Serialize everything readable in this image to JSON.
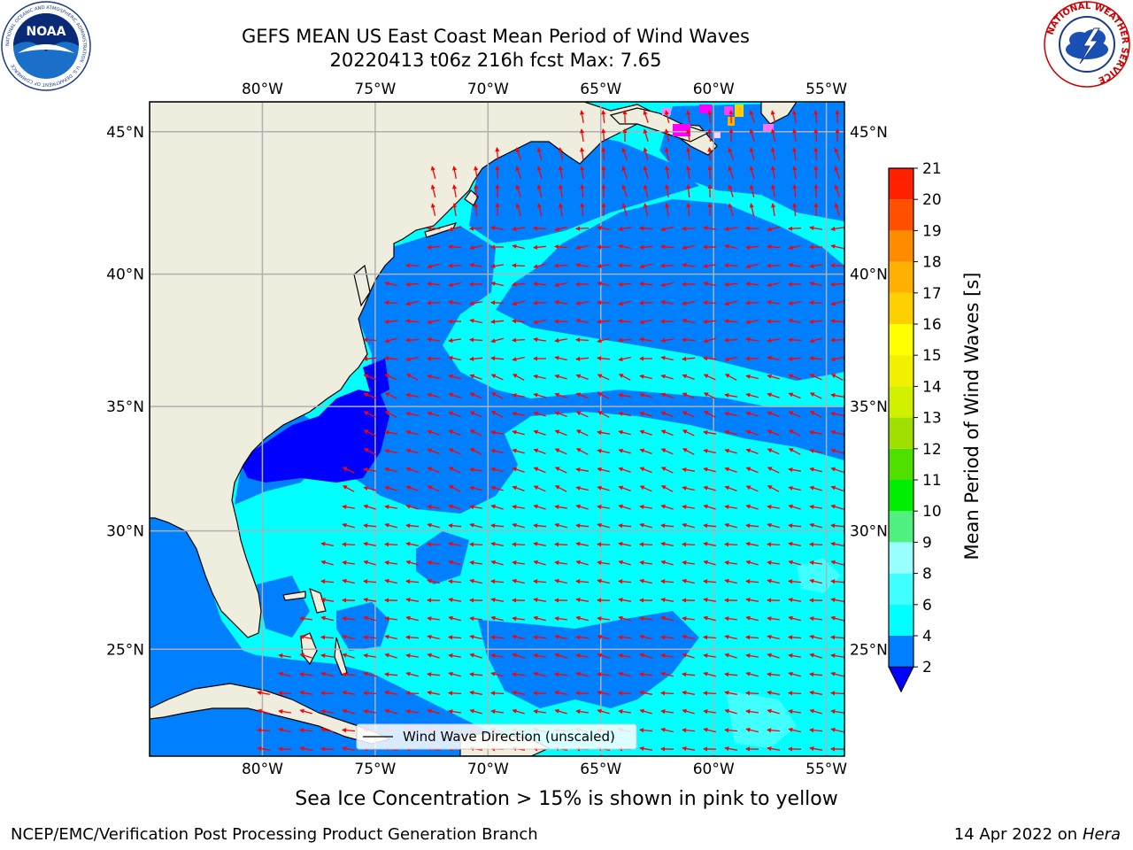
{
  "title": {
    "line1": "GEFS MEAN US East Coast Mean Period of Wind Waves",
    "line2": "20220413 t06z 216h fcst   Max: 7.65"
  },
  "map": {
    "lon_labels": [
      "80°W",
      "75°W",
      "70°W",
      "65°W",
      "60°W",
      "55°W"
    ],
    "lat_labels": [
      "45°N",
      "40°N",
      "35°N",
      "30°N",
      "25°N"
    ],
    "extent": {
      "lon": [
        -85,
        -54.2
      ],
      "lat": [
        20.3,
        46
      ]
    },
    "legend_label": "Wind Wave Direction (unscaled)",
    "colors": {
      "land": "#efedde",
      "grid": "#b0b0b0",
      "arrow": "#ff0000",
      "below_2": "#0000ff",
      "period_2_4": "#0080ff",
      "period_4_6": "#00ffff"
    }
  },
  "colorbar": {
    "title": "Mean Period of Wind Waves [s]",
    "ticks": [
      "2",
      "4",
      "6",
      "8",
      "9",
      "10",
      "11",
      "12",
      "13",
      "14",
      "15",
      "16",
      "17",
      "18",
      "19",
      "20",
      "21"
    ],
    "colors": [
      "#0080ff",
      "#00ffff",
      "#40ffff",
      "#99ffff",
      "#50f080",
      "#00ee00",
      "#50e000",
      "#a0e000",
      "#d0f000",
      "#f0f000",
      "#ffff00",
      "#ffd000",
      "#ffb000",
      "#ff8c00",
      "#ff5000",
      "#ff2000",
      "#ff0000"
    ],
    "extend_color": "#0000ff"
  },
  "footnote": "Sea Ice Concentration > 15% is shown in pink to yellow",
  "credit": {
    "left": "NCEP/EMC/Verification Post Processing Product Generation Branch",
    "date": "14 Apr 2022 on",
    "host": "Hera"
  },
  "logos": {
    "noaa_text": "NOAA",
    "noaa_ring": "NATIONAL OCEANIC AND ATMOSPHERIC ADMINISTRATION · U.S. DEPARTMENT OF COMMERCE",
    "nws_ring": "NATIONAL WEATHER SERVICE"
  }
}
